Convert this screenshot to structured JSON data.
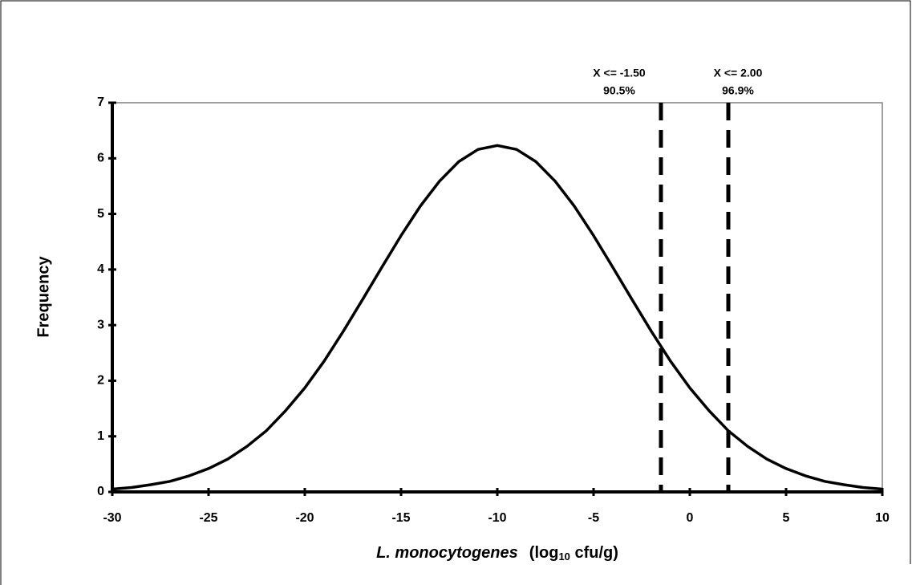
{
  "chart_data": {
    "type": "line",
    "ylabel": "Frequency",
    "xlabel": {
      "italic": "L. monocytogenes",
      "text": "(log",
      "sub": "10",
      "tail": " cfu/g)"
    },
    "x": [
      -30,
      -29,
      -28,
      -27,
      -26,
      -25,
      -24,
      -23,
      -22,
      -21,
      -20,
      -19,
      -18,
      -17,
      -16,
      -15,
      -14,
      -13,
      -12,
      -11,
      -10,
      -9,
      -8,
      -7,
      -6,
      -5,
      -4,
      -3,
      -2,
      -1,
      0,
      1,
      2,
      3,
      4,
      5,
      6,
      7,
      8,
      9,
      10
    ],
    "series": [
      {
        "name": "Frequency",
        "color": "#000000",
        "values": [
          0.05,
          0.08,
          0.13,
          0.19,
          0.29,
          0.42,
          0.59,
          0.82,
          1.1,
          1.46,
          1.87,
          2.35,
          2.89,
          3.46,
          4.04,
          4.61,
          5.14,
          5.59,
          5.94,
          6.16,
          6.23,
          6.16,
          5.94,
          5.59,
          5.14,
          4.61,
          4.04,
          3.46,
          2.89,
          2.35,
          1.87,
          1.46,
          1.1,
          0.82,
          0.59,
          0.42,
          0.29,
          0.19,
          0.13,
          0.08,
          0.05
        ]
      }
    ],
    "markers": [
      {
        "x": -1.5,
        "label": "X <= -1.50",
        "percent": "90.5%"
      },
      {
        "x": 2,
        "label": "X <= 2.00",
        "percent": "96.9%"
      }
    ],
    "xlim": [
      -30,
      10
    ],
    "xticks": [
      -30,
      -25,
      -20,
      -15,
      -10,
      -5,
      0,
      5,
      10
    ],
    "ylim": [
      0,
      7
    ],
    "yticks": [
      0,
      1,
      2,
      3,
      4,
      5,
      6,
      7
    ]
  }
}
